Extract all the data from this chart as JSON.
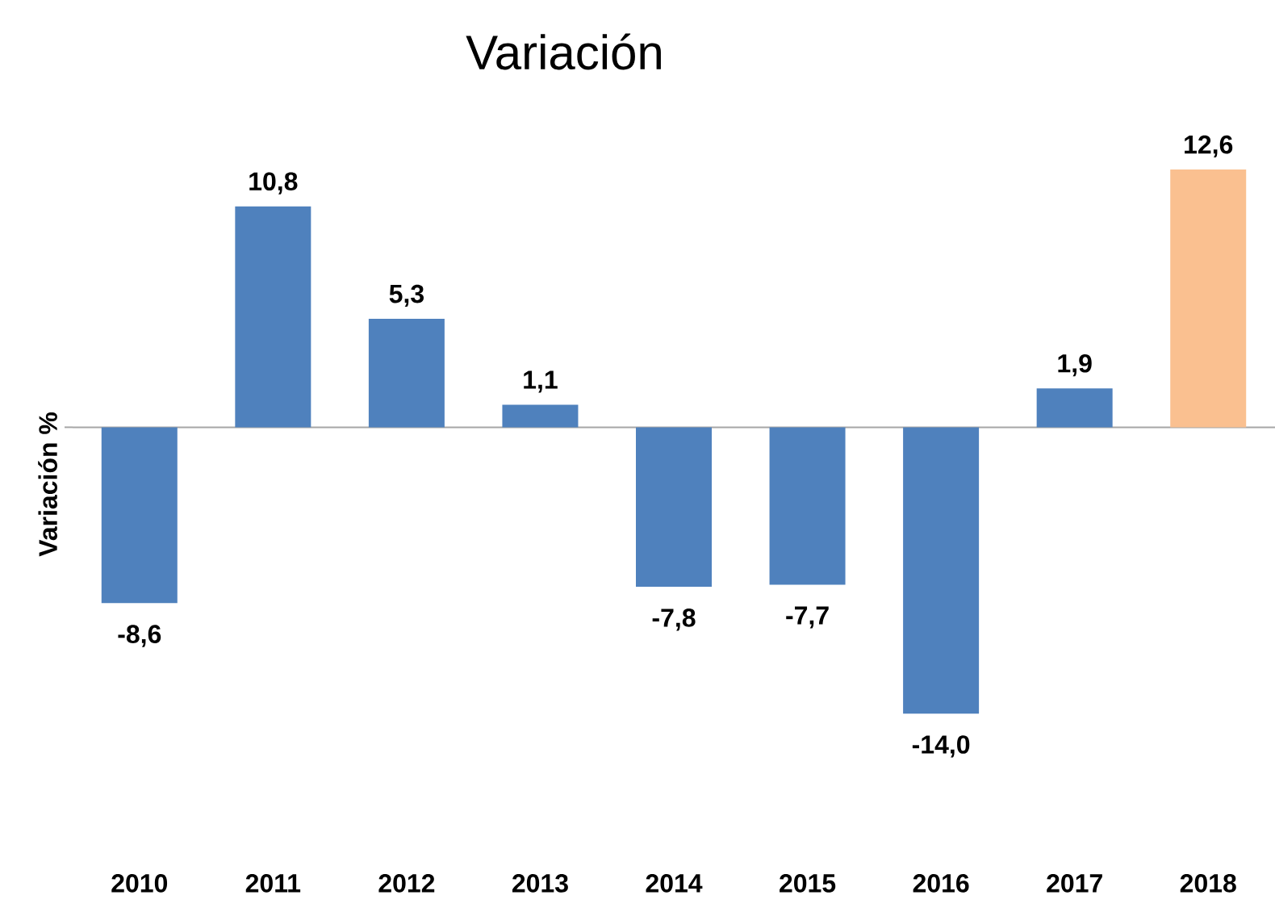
{
  "chart_data": {
    "type": "bar",
    "title": "Variación",
    "ylabel": "Variación %",
    "categories": [
      "2010",
      "2011",
      "2012",
      "2013",
      "2014",
      "2015",
      "2016",
      "2017",
      "2018"
    ],
    "values": [
      -8.6,
      10.8,
      5.3,
      1.1,
      -7.8,
      -7.7,
      -14.0,
      1.9,
      12.6
    ],
    "value_labels": [
      "-8,6",
      "10,8",
      "5,3",
      "1,1",
      "-7,8",
      "-7,7",
      "-14,0",
      "1,9",
      "12,6"
    ],
    "colors": [
      "#4f81bd",
      "#4f81bd",
      "#4f81bd",
      "#4f81bd",
      "#4f81bd",
      "#4f81bd",
      "#4f81bd",
      "#4f81bd",
      "#fac090"
    ],
    "relative": false
  }
}
